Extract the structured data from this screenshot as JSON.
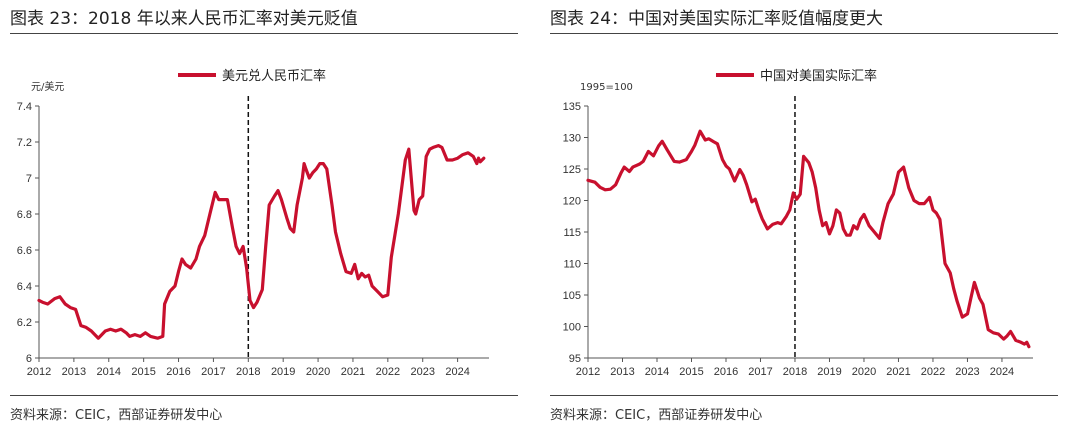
{
  "figures": [
    {
      "title": "图表 23：2018 年以来人民币汇率对美元贬值",
      "source": "资料来源：CEIC，西部证券研发中心"
    },
    {
      "title": "图表 24：中国对美国实际汇率贬值幅度更大",
      "source": "资料来源：CEIC，西部证券研发中心"
    }
  ],
  "chart_data": [
    {
      "type": "line",
      "title": "图表 23：2018 年以来人民币汇率对美元贬值",
      "unit_label": "元/美元",
      "ylim": [
        6,
        7.4
      ],
      "xlim": [
        2012,
        2024.9
      ],
      "y_ticks": [
        "6",
        "6.2",
        "6.4",
        "6.6",
        "6.8",
        "7",
        "7.2",
        "7.4"
      ],
      "x_ticks": [
        "2012",
        "2013",
        "2014",
        "2015",
        "2016",
        "2017",
        "2018",
        "2019",
        "2020",
        "2021",
        "2022",
        "2023",
        "2024"
      ],
      "legend_position": "top-center",
      "series_color": "#c8102e",
      "vline_x": 2018.0,
      "series": [
        {
          "name": "美元兑人民币汇率",
          "x": [
            2012.0,
            2012.1,
            2012.25,
            2012.45,
            2012.6,
            2012.75,
            2012.9,
            2013.05,
            2013.2,
            2013.35,
            2013.5,
            2013.7,
            2013.9,
            2014.05,
            2014.2,
            2014.35,
            2014.5,
            2014.6,
            2014.75,
            2014.9,
            2015.05,
            2015.2,
            2015.4,
            2015.55,
            2015.6,
            2015.75,
            2015.9,
            2016.0,
            2016.1,
            2016.2,
            2016.35,
            2016.5,
            2016.6,
            2016.75,
            2016.9,
            2017.05,
            2017.15,
            2017.3,
            2017.4,
            2017.55,
            2017.65,
            2017.75,
            2017.85,
            2017.95,
            2018.05,
            2018.15,
            2018.25,
            2018.4,
            2018.5,
            2018.6,
            2018.75,
            2018.85,
            2018.95,
            2019.1,
            2019.2,
            2019.3,
            2019.4,
            2019.55,
            2019.6,
            2019.65,
            2019.75,
            2019.85,
            2019.95,
            2020.05,
            2020.15,
            2020.25,
            2020.4,
            2020.5,
            2020.65,
            2020.8,
            2020.95,
            2021.05,
            2021.15,
            2021.25,
            2021.35,
            2021.45,
            2021.55,
            2021.7,
            2021.85,
            2022.0,
            2022.1,
            2022.2,
            2022.3,
            2022.4,
            2022.5,
            2022.6,
            2022.7,
            2022.75,
            2022.8,
            2022.9,
            2023.0,
            2023.1,
            2023.2,
            2023.3,
            2023.45,
            2023.55,
            2023.7,
            2023.85,
            2024.0,
            2024.15,
            2024.3,
            2024.45,
            2024.55,
            2024.6,
            2024.65,
            2024.75
          ],
          "values": [
            6.32,
            6.31,
            6.3,
            6.33,
            6.34,
            6.3,
            6.28,
            6.27,
            6.18,
            6.17,
            6.15,
            6.11,
            6.15,
            6.16,
            6.15,
            6.16,
            6.14,
            6.12,
            6.13,
            6.12,
            6.14,
            6.12,
            6.11,
            6.12,
            6.3,
            6.37,
            6.4,
            6.48,
            6.55,
            6.52,
            6.5,
            6.55,
            6.62,
            6.68,
            6.8,
            6.92,
            6.88,
            6.88,
            6.88,
            6.72,
            6.62,
            6.58,
            6.62,
            6.5,
            6.32,
            6.28,
            6.31,
            6.38,
            6.62,
            6.85,
            6.9,
            6.93,
            6.88,
            6.78,
            6.72,
            6.7,
            6.85,
            7.0,
            7.08,
            7.05,
            7.0,
            7.03,
            7.05,
            7.08,
            7.08,
            7.05,
            6.85,
            6.7,
            6.58,
            6.48,
            6.47,
            6.52,
            6.44,
            6.47,
            6.45,
            6.46,
            6.4,
            6.37,
            6.34,
            6.35,
            6.56,
            6.68,
            6.8,
            6.95,
            7.1,
            7.16,
            6.93,
            6.82,
            6.8,
            6.88,
            6.9,
            7.12,
            7.16,
            7.17,
            7.18,
            7.17,
            7.1,
            7.1,
            7.11,
            7.13,
            7.14,
            7.12,
            7.08,
            7.11,
            7.09,
            7.11
          ]
        }
      ]
    },
    {
      "type": "line",
      "title": "图表 24：中国对美国实际汇率贬值幅度更大",
      "unit_label": "1995=100",
      "ylim": [
        95,
        135
      ],
      "xlim": [
        2012,
        2024.9
      ],
      "y_ticks": [
        "95",
        "100",
        "105",
        "110",
        "115",
        "120",
        "125",
        "130",
        "135"
      ],
      "x_ticks": [
        "2012",
        "2013",
        "2014",
        "2015",
        "2016",
        "2017",
        "2018",
        "2019",
        "2020",
        "2021",
        "2022",
        "2023",
        "2024"
      ],
      "legend_position": "top-center",
      "series_color": "#c8102e",
      "vline_x": 2018.0,
      "series": [
        {
          "name": "中国对美国实际汇率",
          "x": [
            2012.0,
            2012.2,
            2012.35,
            2012.5,
            2012.65,
            2012.8,
            2012.95,
            2013.05,
            2013.2,
            2013.3,
            2013.5,
            2013.6,
            2013.75,
            2013.9,
            2014.05,
            2014.15,
            2014.3,
            2014.5,
            2014.65,
            2014.85,
            2015.0,
            2015.1,
            2015.25,
            2015.4,
            2015.5,
            2015.65,
            2015.75,
            2015.9,
            2016.0,
            2016.1,
            2016.25,
            2016.4,
            2016.5,
            2016.6,
            2016.75,
            2016.85,
            2016.95,
            2017.05,
            2017.2,
            2017.35,
            2017.5,
            2017.6,
            2017.75,
            2017.85,
            2017.95,
            2018.05,
            2018.15,
            2018.25,
            2018.4,
            2018.5,
            2018.6,
            2018.7,
            2018.8,
            2018.9,
            2019.0,
            2019.1,
            2019.2,
            2019.3,
            2019.4,
            2019.5,
            2019.6,
            2019.7,
            2019.8,
            2019.9,
            2020.0,
            2020.15,
            2020.3,
            2020.45,
            2020.55,
            2020.7,
            2020.85,
            2021.0,
            2021.15,
            2021.3,
            2021.45,
            2021.6,
            2021.75,
            2021.9,
            2022.0,
            2022.1,
            2022.2,
            2022.35,
            2022.5,
            2022.6,
            2022.7,
            2022.85,
            2023.0,
            2023.1,
            2023.2,
            2023.35,
            2023.45,
            2023.6,
            2023.75,
            2023.9,
            2024.05,
            2024.15,
            2024.25,
            2024.4,
            2024.55,
            2024.65,
            2024.72,
            2024.78
          ],
          "values": [
            123.2,
            122.9,
            122.1,
            121.7,
            121.8,
            122.5,
            124.3,
            125.3,
            124.6,
            125.3,
            125.8,
            126.2,
            127.8,
            127.1,
            128.7,
            129.4,
            128.0,
            126.2,
            126.1,
            126.5,
            127.8,
            128.8,
            131.0,
            129.6,
            129.8,
            129.3,
            129.0,
            126.5,
            125.5,
            125.0,
            123.1,
            124.9,
            124.0,
            122.5,
            119.8,
            120.2,
            118.5,
            117.1,
            115.5,
            116.2,
            116.5,
            116.3,
            117.5,
            118.5,
            121.2,
            120.2,
            121.0,
            127.0,
            126.0,
            124.5,
            122.0,
            118.5,
            116.0,
            116.5,
            114.7,
            116.0,
            118.5,
            118.0,
            115.5,
            114.5,
            114.5,
            116.0,
            115.5,
            117.0,
            117.8,
            116.0,
            115.0,
            114.0,
            116.5,
            119.5,
            121.0,
            124.5,
            125.3,
            122.0,
            120.0,
            119.5,
            119.5,
            120.5,
            118.5,
            118.0,
            117.0,
            110.0,
            108.5,
            106.0,
            104.0,
            101.5,
            102.0,
            104.5,
            107.0,
            104.5,
            103.5,
            99.5,
            99.0,
            98.8,
            98.0,
            98.5,
            99.2,
            97.8,
            97.5,
            97.2,
            97.5,
            96.8
          ]
        }
      ]
    }
  ]
}
